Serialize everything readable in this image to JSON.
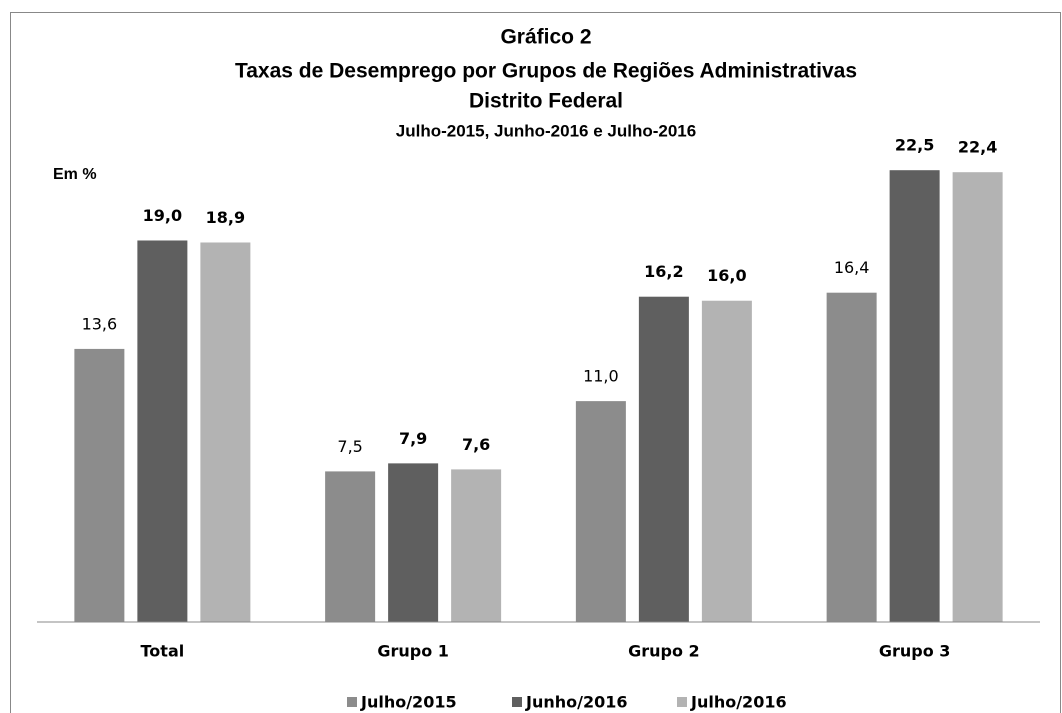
{
  "chart_data": {
    "type": "bar",
    "title": "Gráfico 2",
    "title_lines": [
      "Taxas de Desemprego por Grupos de Regiões Administrativas",
      "Distrito Federal"
    ],
    "subtitle": "Julho-2015, Junho-2016 e Julho-2016",
    "y_label": "Em %",
    "categories": [
      "Total",
      "Grupo 1",
      "Grupo 2",
      "Grupo 3"
    ],
    "series": [
      {
        "name": "Julho/2015",
        "color": "#8c8c8c",
        "values": [
          13.6,
          7.5,
          11.0,
          16.4
        ],
        "value_labels": [
          "13,6",
          "7,5",
          "11,0",
          "16,4"
        ]
      },
      {
        "name": "Junho/2016",
        "color": "#5f5f5f",
        "values": [
          19.0,
          7.9,
          16.2,
          22.5
        ],
        "value_labels": [
          "19,0",
          "7,9",
          "16,2",
          "22,5"
        ]
      },
      {
        "name": "Julho/2016",
        "color": "#b3b3b3",
        "values": [
          18.9,
          7.6,
          16.0,
          22.4
        ],
        "value_labels": [
          "18,9",
          "7,6",
          "16,0",
          "22,4"
        ]
      }
    ],
    "ylim": [
      0,
      25
    ],
    "legend": "bottom"
  }
}
